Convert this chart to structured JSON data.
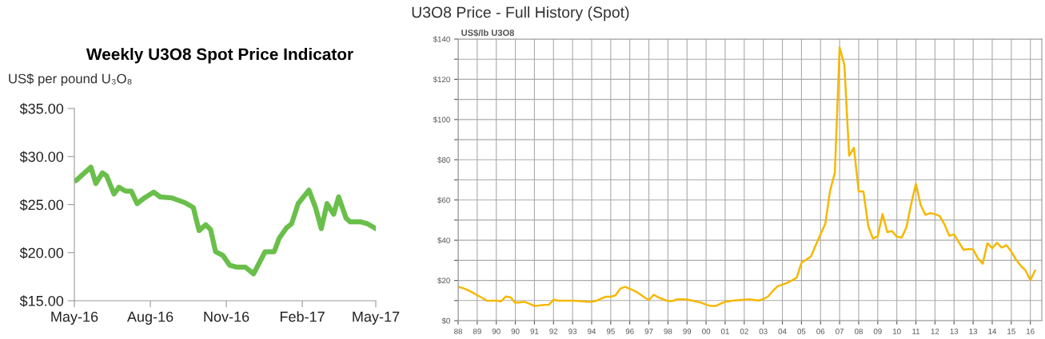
{
  "chart_data": [
    {
      "type": "line",
      "title": "Weekly U3O8 Spot Price Indicator",
      "ylabel": "US$ per pound U₃O₈",
      "x": [
        "2016-05-03",
        "2016-05-21",
        "2016-05-27",
        "2016-06-04",
        "2016-06-09",
        "2016-06-18",
        "2016-06-24",
        "2016-07-02",
        "2016-07-09",
        "2016-07-16",
        "2016-07-25",
        "2016-08-05",
        "2016-08-13",
        "2016-08-27",
        "2016-09-12",
        "2016-09-22",
        "2016-09-29",
        "2016-10-07",
        "2016-10-13",
        "2016-10-19",
        "2016-10-28",
        "2016-11-05",
        "2016-11-13",
        "2016-11-24",
        "2016-12-04",
        "2016-12-18",
        "2016-12-29",
        "2017-01-04",
        "2017-01-13",
        "2017-01-19",
        "2017-01-27",
        "2017-02-09",
        "2017-02-17",
        "2017-02-24",
        "2017-03-03",
        "2017-03-11",
        "2017-03-17",
        "2017-03-26",
        "2017-03-31",
        "2017-04-13",
        "2017-04-21",
        "2017-05-01"
      ],
      "series": [
        {
          "color": "#6abf4b",
          "values": [
            27.5,
            28.9,
            27.2,
            28.3,
            28.0,
            26.1,
            26.8,
            26.4,
            26.4,
            25.1,
            25.7,
            26.3,
            25.8,
            25.7,
            25.2,
            24.7,
            22.3,
            22.9,
            22.4,
            20.1,
            19.7,
            18.7,
            18.5,
            18.5,
            17.8,
            20.1,
            20.1,
            21.5,
            22.6,
            23.0,
            25.1,
            26.5,
            24.7,
            22.5,
            25.1,
            24.0,
            25.8,
            23.6,
            23.2,
            23.2,
            23.0,
            22.5
          ]
        }
      ],
      "xlim": [
        "2016-05-01",
        "2017-05-01"
      ],
      "xticks": [
        {
          "value": "2016-05-01",
          "label": "May-16"
        },
        {
          "value": "2016-08-01",
          "label": "Aug-16"
        },
        {
          "value": "2016-11-01",
          "label": "Nov-16"
        },
        {
          "value": "2017-02-01",
          "label": "Feb-17"
        },
        {
          "value": "2017-05-01",
          "label": "May-17"
        }
      ],
      "ylim": [
        15,
        35
      ],
      "yticks": [
        {
          "value": 15,
          "label": "$15.00"
        },
        {
          "value": 20,
          "label": "$20.00"
        },
        {
          "value": 25,
          "label": "$25.00"
        },
        {
          "value": 30,
          "label": "$30.00"
        },
        {
          "value": 35,
          "label": "$35.00"
        }
      ],
      "grid": false,
      "legend": false
    },
    {
      "type": "line",
      "title": "U3O8 Price - Full History (Spot)",
      "ylabel": "US$/lb U3O8",
      "categories": [
        "88",
        null,
        null,
        null,
        "89",
        null,
        null,
        null,
        "90",
        null,
        null,
        null,
        "90",
        null,
        null,
        null,
        "91",
        null,
        null,
        null,
        "92",
        null,
        null,
        null,
        "93",
        null,
        null,
        null,
        "94",
        null,
        null,
        null,
        "95",
        null,
        null,
        null,
        "96",
        null,
        null,
        null,
        "97",
        null,
        null,
        null,
        "98",
        null,
        null,
        null,
        "99",
        null,
        null,
        null,
        "00",
        null,
        null,
        null,
        "01",
        null,
        null,
        null,
        "02",
        null,
        null,
        null,
        "03",
        null,
        null,
        null,
        "04",
        null,
        null,
        null,
        "05",
        null,
        null,
        null,
        "06",
        null,
        null,
        null,
        "07",
        null,
        null,
        null,
        "08",
        null,
        null,
        null,
        "09",
        null,
        null,
        null,
        "10",
        null,
        null,
        null,
        "11",
        null,
        null,
        null,
        "12",
        null,
        null,
        null,
        "13",
        null,
        null,
        null,
        "13",
        null,
        null,
        null,
        "14",
        null,
        null,
        null,
        "15",
        null,
        null,
        null,
        "16",
        null
      ],
      "series": [
        {
          "color": "#f5b800",
          "values": [
            16.8,
            16.2,
            15.2,
            14.0,
            12.6,
            11.4,
            9.9,
            9.9,
            9.9,
            9.6,
            12.0,
            11.6,
            8.9,
            9.1,
            9.3,
            8.4,
            7.3,
            7.5,
            7.8,
            7.9,
            10.4,
            9.9,
            9.9,
            9.9,
            9.9,
            9.8,
            9.6,
            9.4,
            9.4,
            9.9,
            11.0,
            11.9,
            11.9,
            12.6,
            15.9,
            16.8,
            15.8,
            14.8,
            13.4,
            11.7,
            10.2,
            12.9,
            11.6,
            10.6,
            9.7,
            9.8,
            10.6,
            10.6,
            10.5,
            10.0,
            9.5,
            8.9,
            8.0,
            7.3,
            7.3,
            8.4,
            9.4,
            9.7,
            10.0,
            10.2,
            10.4,
            10.6,
            10.3,
            10.0,
            10.7,
            12.0,
            14.8,
            17.1,
            17.9,
            18.8,
            20.0,
            21.4,
            28.8,
            30.3,
            31.9,
            37.6,
            42.9,
            48.2,
            64.6,
            73.5,
            135.8,
            127,
            82,
            86,
            64.2,
            64.2,
            47,
            40.8,
            42,
            53,
            44,
            44.5,
            41.7,
            41.3,
            46.3,
            58,
            68,
            57.5,
            52.6,
            53.5,
            53,
            52,
            47.8,
            42.2,
            42.9,
            39,
            35.2,
            35.6,
            35.4,
            31,
            28.3,
            38.5,
            36,
            38.7,
            36.3,
            37.5,
            34.4,
            30.3,
            27.3,
            24.9,
            20.2,
            25
          ]
        }
      ],
      "ylim": [
        0,
        140
      ],
      "yticks": [
        {
          "value": 0,
          "label": "$0"
        },
        {
          "value": 10,
          "label": null
        },
        {
          "value": 20,
          "label": "$20"
        },
        {
          "value": 30,
          "label": null
        },
        {
          "value": 40,
          "label": "$40"
        },
        {
          "value": 50,
          "label": null
        },
        {
          "value": 60,
          "label": "$60"
        },
        {
          "value": 70,
          "label": null
        },
        {
          "value": 80,
          "label": "$80"
        },
        {
          "value": 90,
          "label": null
        },
        {
          "value": 100,
          "label": "$100"
        },
        {
          "value": 110,
          "label": null
        },
        {
          "value": 120,
          "label": "$120"
        },
        {
          "value": 130,
          "label": null
        },
        {
          "value": 140,
          "label": "$140"
        }
      ],
      "grid": true,
      "legend": false
    }
  ]
}
